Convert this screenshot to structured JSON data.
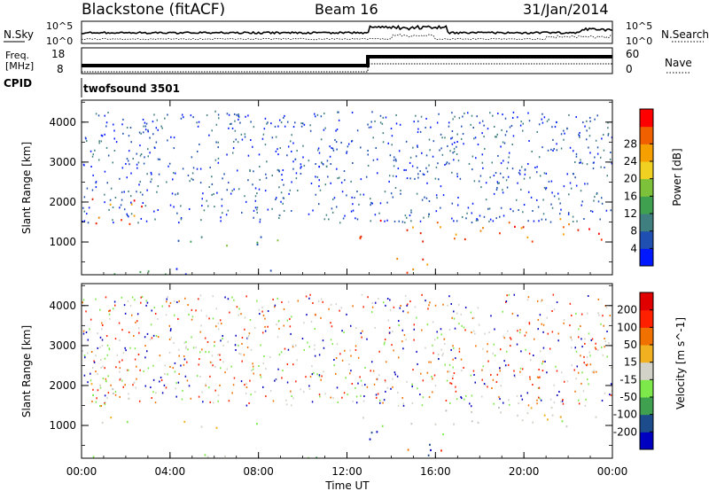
{
  "header": {
    "station": "Blackstone (fitACF)",
    "beam": "Beam 16",
    "date": "31/Jan/2014"
  },
  "noise_panel": {
    "left_label": "N.Sky",
    "right_label": "N.Search",
    "left_ticks": [
      "10^5",
      "10^0"
    ],
    "right_ticks": [
      "10^5",
      "10^0"
    ]
  },
  "freq_panel": {
    "left_label_1": "Freq.",
    "left_label_2": "[MHz]",
    "right_label": "Nave",
    "left_ticks": [
      "18",
      "8"
    ],
    "right_ticks": [
      "60",
      "0"
    ]
  },
  "cpid_panel": {
    "label": "CPID",
    "program": "twofsound 3501"
  },
  "x_axis": {
    "label": "Time UT",
    "ticks": [
      "00:00",
      "04:00",
      "08:00",
      "12:00",
      "16:00",
      "20:00",
      "00:00"
    ]
  },
  "chart_data": [
    {
      "type": "heatmap",
      "title": "",
      "ylabel": "Slant Range [km]",
      "xlabel": "",
      "x_range_hours": [
        0,
        24
      ],
      "ylim": [
        180,
        4550
      ],
      "yticks": [
        1000,
        2000,
        3000,
        4000
      ],
      "colorbar": {
        "label": "Power [dB]",
        "ticks": [
          "4",
          "8",
          "12",
          "16",
          "20",
          "24",
          "28"
        ],
        "colors": [
          "#0018ff",
          "#1f4fb0",
          "#3f7f7f",
          "#3fa050",
          "#7dc03a",
          "#f0d020",
          "#f5a000",
          "#f06000",
          "#ff0000"
        ]
      },
      "bands": [
        {
          "t0": 0.0,
          "t1": 2.7,
          "r0": 1300,
          "r1": 2200,
          "level": "high"
        },
        {
          "t0": 3.0,
          "t1": 9.0,
          "r0": 900,
          "r1": 1250,
          "level": "medium"
        },
        {
          "t0": 12.5,
          "t1": 24.0,
          "r0": 950,
          "r1": 1600,
          "level": "high"
        },
        {
          "t0": 14.0,
          "t1": 16.0,
          "r0": 250,
          "r1": 900,
          "level": "high"
        },
        {
          "t0": 0.0,
          "t1": 12.0,
          "r0": 200,
          "r1": 350,
          "level": "low"
        },
        {
          "t0": 9.0,
          "t1": 11.5,
          "r0": 2800,
          "r1": 3200,
          "level": "low"
        }
      ]
    },
    {
      "type": "heatmap",
      "title": "",
      "ylabel": "Slant Range [km]",
      "xlabel": "Time UT",
      "x_range_hours": [
        0,
        24
      ],
      "ylim": [
        180,
        4550
      ],
      "yticks": [
        1000,
        2000,
        3000,
        4000
      ],
      "colorbar": {
        "label": "Velocity [m s^-1]",
        "ticks": [
          "200",
          "100",
          "50",
          "15",
          "-15",
          "-50",
          "-100",
          "-200"
        ],
        "colors": [
          "#0000c0",
          "#1c4c8c",
          "#3fa050",
          "#7de84a",
          "#d2d2c8",
          "#f0b020",
          "#f07000",
          "#ff2000",
          "#e00000"
        ]
      },
      "bands": [
        {
          "t0": 0.0,
          "t1": 2.7,
          "r0": 1000,
          "r1": 2200,
          "level": "grey"
        },
        {
          "t0": 4.0,
          "t1": 8.0,
          "r0": 950,
          "r1": 1200,
          "level": "orange"
        },
        {
          "t0": 12.5,
          "t1": 24.0,
          "r0": 950,
          "r1": 1500,
          "level": "grey"
        },
        {
          "t0": 13.0,
          "t1": 16.5,
          "r0": 250,
          "r1": 900,
          "level": "mixed"
        },
        {
          "t0": 0.0,
          "t1": 12.0,
          "r0": 200,
          "r1": 330,
          "level": "green"
        }
      ]
    }
  ]
}
